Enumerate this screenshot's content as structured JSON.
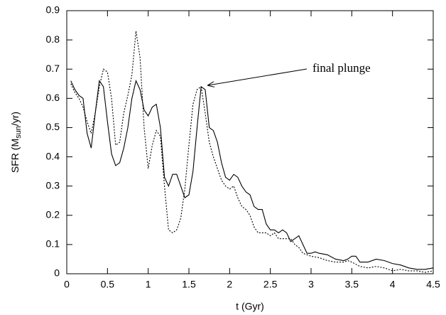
{
  "chart_data": {
    "type": "line",
    "xlabel": "t (Gyr)",
    "ylabel": [
      "SFR (M",
      "sun",
      "/yr)"
    ],
    "annotation": "final plunge",
    "xlim": [
      0,
      4.5
    ],
    "xticks": [
      0,
      0.5,
      1,
      1.5,
      2,
      2.5,
      3,
      3.5,
      4,
      4.5
    ],
    "ylim": [
      0,
      0.9
    ],
    "yticks": [
      0,
      0.1,
      0.2,
      0.3,
      0.4,
      0.5,
      0.6,
      0.7,
      0.8,
      0.9
    ],
    "grid": false,
    "series": [
      {
        "color": "#000000",
        "dash": "solid",
        "x": [
          0.05,
          0.1,
          0.15,
          0.2,
          0.25,
          0.3,
          0.35,
          0.4,
          0.45,
          0.5,
          0.55,
          0.6,
          0.65,
          0.7,
          0.75,
          0.8,
          0.85,
          0.9,
          0.95,
          1.0,
          1.05,
          1.1,
          1.15,
          1.2,
          1.25,
          1.3,
          1.35,
          1.4,
          1.45,
          1.5,
          1.55,
          1.6,
          1.65,
          1.7,
          1.75,
          1.8,
          1.85,
          1.9,
          1.95,
          2.0,
          2.05,
          2.1,
          2.15,
          2.2,
          2.25,
          2.3,
          2.35,
          2.4,
          2.45,
          2.5,
          2.55,
          2.6,
          2.65,
          2.7,
          2.75,
          2.8,
          2.85,
          2.9,
          2.95,
          3.0,
          3.05,
          3.1,
          3.2,
          3.3,
          3.4,
          3.45,
          3.5,
          3.55,
          3.6,
          3.7,
          3.8,
          3.9,
          4.0,
          4.1,
          4.2,
          4.3,
          4.4,
          4.5
        ],
        "values": [
          0.66,
          0.63,
          0.61,
          0.6,
          0.48,
          0.43,
          0.55,
          0.66,
          0.64,
          0.52,
          0.41,
          0.37,
          0.38,
          0.43,
          0.5,
          0.6,
          0.66,
          0.63,
          0.56,
          0.54,
          0.57,
          0.58,
          0.5,
          0.33,
          0.3,
          0.34,
          0.34,
          0.3,
          0.26,
          0.27,
          0.35,
          0.5,
          0.64,
          0.63,
          0.5,
          0.49,
          0.45,
          0.38,
          0.33,
          0.32,
          0.34,
          0.33,
          0.3,
          0.28,
          0.27,
          0.23,
          0.22,
          0.22,
          0.17,
          0.15,
          0.15,
          0.14,
          0.15,
          0.14,
          0.11,
          0.12,
          0.13,
          0.1,
          0.07,
          0.07,
          0.075,
          0.07,
          0.065,
          0.05,
          0.045,
          0.05,
          0.06,
          0.06,
          0.04,
          0.04,
          0.05,
          0.045,
          0.035,
          0.03,
          0.02,
          0.015,
          0.015,
          0.02
        ]
      },
      {
        "color": "#000000",
        "dash": "dotted",
        "x": [
          0.05,
          0.1,
          0.15,
          0.2,
          0.25,
          0.3,
          0.35,
          0.4,
          0.45,
          0.5,
          0.55,
          0.6,
          0.65,
          0.7,
          0.75,
          0.8,
          0.85,
          0.9,
          0.95,
          1.0,
          1.05,
          1.1,
          1.15,
          1.2,
          1.25,
          1.3,
          1.35,
          1.4,
          1.45,
          1.5,
          1.55,
          1.6,
          1.65,
          1.7,
          1.75,
          1.8,
          1.85,
          1.9,
          1.95,
          2.0,
          2.05,
          2.1,
          2.15,
          2.2,
          2.25,
          2.3,
          2.35,
          2.4,
          2.45,
          2.5,
          2.55,
          2.6,
          2.65,
          2.7,
          2.75,
          2.8,
          2.85,
          2.9,
          3.0,
          3.1,
          3.2,
          3.3,
          3.4,
          3.45,
          3.5,
          3.6,
          3.7,
          3.8,
          3.9,
          4.0,
          4.1,
          4.2,
          4.3,
          4.4,
          4.5
        ],
        "values": [
          0.65,
          0.62,
          0.6,
          0.57,
          0.52,
          0.48,
          0.55,
          0.64,
          0.7,
          0.69,
          0.6,
          0.44,
          0.45,
          0.55,
          0.61,
          0.68,
          0.83,
          0.74,
          0.5,
          0.36,
          0.44,
          0.49,
          0.47,
          0.3,
          0.15,
          0.14,
          0.15,
          0.19,
          0.29,
          0.44,
          0.58,
          0.63,
          0.64,
          0.55,
          0.45,
          0.4,
          0.36,
          0.32,
          0.3,
          0.29,
          0.3,
          0.26,
          0.23,
          0.22,
          0.2,
          0.16,
          0.14,
          0.14,
          0.14,
          0.13,
          0.14,
          0.12,
          0.12,
          0.12,
          0.12,
          0.1,
          0.09,
          0.07,
          0.06,
          0.055,
          0.045,
          0.04,
          0.04,
          0.045,
          0.04,
          0.025,
          0.02,
          0.025,
          0.02,
          0.01,
          0.015,
          0.01,
          0.01,
          0.005,
          0.01
        ]
      }
    ]
  }
}
